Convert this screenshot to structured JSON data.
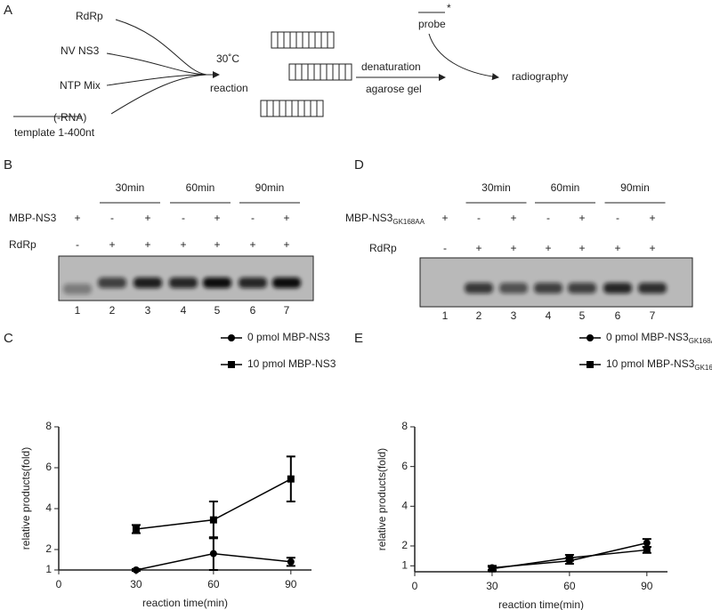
{
  "panel_labels": [
    "A",
    "B",
    "C",
    "D",
    "E"
  ],
  "diagram": {
    "inputs": [
      "RdRp",
      "NV NS3",
      "NTP Mix",
      "(-RNA)"
    ],
    "template": "template 1-400nt",
    "temperature": "30˚C",
    "reaction": "reaction",
    "denaturation": "denaturation",
    "gel": "agarose gel",
    "probe": "probe",
    "probe_mark": "*",
    "readout": "radiography"
  },
  "gels": [
    {
      "times": [
        "30min",
        "60min",
        "90min"
      ],
      "protein": "MBP-NS3",
      "protein_signs": [
        "+",
        "-",
        "+",
        "-",
        "+",
        "-",
        "+"
      ],
      "rdrp": "RdRp",
      "rdrp_signs": [
        "-",
        "+",
        "+",
        "+",
        "+",
        "+",
        "+"
      ],
      "lanes": [
        "1",
        "2",
        "3",
        "4",
        "5",
        "6",
        "7"
      ]
    },
    {
      "times": [
        "30min",
        "60min",
        "90min"
      ],
      "protein": "MBP-NS3",
      "protein_sub": "GK168AA",
      "protein_signs": [
        "+",
        "-",
        "+",
        "-",
        "+",
        "-",
        "+"
      ],
      "rdrp": "RdRp",
      "rdrp_signs": [
        "-",
        "+",
        "+",
        "+",
        "+",
        "+",
        "+"
      ],
      "lanes": [
        "1",
        "2",
        "3",
        "4",
        "5",
        "6",
        "7"
      ]
    }
  ],
  "chart_data": [
    {
      "type": "line",
      "x_label": "reaction time(min)",
      "y_label": "relative products(fold)",
      "xlim": [
        0,
        98
      ],
      "xticks": [
        0,
        30,
        60,
        90
      ],
      "ylim": [
        1,
        8
      ],
      "yticks": [
        1,
        2,
        4,
        6,
        8
      ],
      "series": [
        {
          "name": "0 pmol MBP-NS3",
          "color": "#000000",
          "marker": "circle",
          "x": [
            30,
            60,
            90
          ],
          "values": [
            1.0,
            1.8,
            1.4
          ],
          "errors": [
            0.05,
            0.8,
            0.2
          ]
        },
        {
          "name": "10 pmol MBP-NS3",
          "color": "#000000",
          "marker": "square",
          "x": [
            30,
            60,
            90
          ],
          "values": [
            3.0,
            3.45,
            5.45
          ],
          "errors": [
            0.2,
            0.9,
            1.1
          ]
        }
      ]
    },
    {
      "type": "line",
      "x_label": "reaction time(min)",
      "y_label": "relative products(fold)",
      "xlim": [
        0,
        98
      ],
      "xticks": [
        0,
        30,
        60,
        90
      ],
      "ylim": [
        0.7,
        8
      ],
      "yticks": [
        1,
        2,
        4,
        6,
        8
      ],
      "series": [
        {
          "name": "0 pmol MBP-NS3",
          "name_sub": "GK168AA",
          "color": "#000000",
          "marker": "circle",
          "x": [
            30,
            60,
            90
          ],
          "values": [
            0.9,
            1.25,
            2.15
          ],
          "errors": [
            0.1,
            0.15,
            0.2
          ]
        },
        {
          "name": "10 pmol MBP-NS3",
          "name_sub": "GK168AA",
          "color": "#000000",
          "marker": "square",
          "x": [
            30,
            60,
            90
          ],
          "values": [
            0.85,
            1.4,
            1.8
          ],
          "errors": [
            0.1,
            0.15,
            0.15
          ]
        }
      ]
    }
  ]
}
